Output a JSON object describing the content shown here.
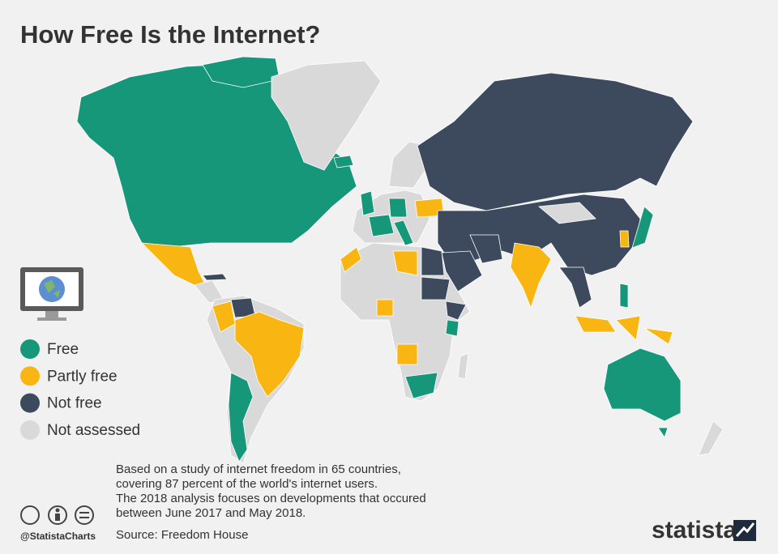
{
  "title": "How Free Is the Internet?",
  "legend": [
    {
      "label": "Free",
      "color": "#16977a"
    },
    {
      "label": "Partly free",
      "color": "#f9b511"
    },
    {
      "label": "Not free",
      "color": "#3d4a5e"
    },
    {
      "label": "Not assessed",
      "color": "#d9d9d9"
    }
  ],
  "note": [
    "Based on a study of internet freedom in 65 countries,",
    "covering 87 percent of the world's internet users.",
    "The 2018 analysis focuses on developments that occured",
    "between June 2017 and May 2018."
  ],
  "source": "Source: Freedom House",
  "credit": "@StatistaCharts",
  "brand": "statista"
}
